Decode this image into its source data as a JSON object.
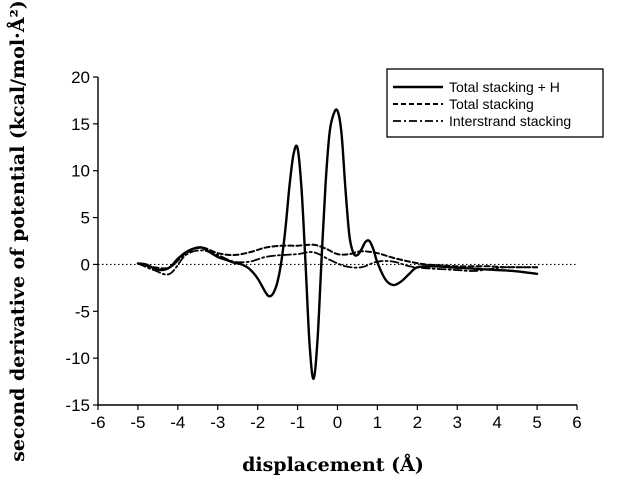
{
  "chart_data": {
    "type": "line",
    "title": "",
    "xlabel": "displacement (Å)",
    "ylabel": "second derivative of potential (kcal/mol·Å²)",
    "xlim": [
      -6,
      6
    ],
    "ylim": [
      -15,
      20
    ],
    "xticks": [
      -6,
      -5,
      -4,
      -3,
      -2,
      -1,
      0,
      1,
      2,
      3,
      4,
      5,
      6
    ],
    "yticks": [
      -15,
      -10,
      -5,
      0,
      5,
      10,
      15,
      20
    ],
    "grid": false,
    "legend_position": "top-right",
    "zero_line": true,
    "series": [
      {
        "name": "Total stacking + H",
        "style": "solid",
        "x": [
          -5.0,
          -4.8,
          -4.6,
          -4.4,
          -4.2,
          -4.0,
          -3.8,
          -3.6,
          -3.4,
          -3.2,
          -3.0,
          -2.8,
          -2.6,
          -2.4,
          -2.2,
          -2.0,
          -1.8,
          -1.7,
          -1.6,
          -1.5,
          -1.4,
          -1.3,
          -1.2,
          -1.1,
          -1.0,
          -0.9,
          -0.8,
          -0.7,
          -0.6,
          -0.5,
          -0.4,
          -0.3,
          -0.2,
          -0.1,
          0.0,
          0.1,
          0.2,
          0.3,
          0.4,
          0.5,
          0.6,
          0.7,
          0.8,
          0.9,
          1.0,
          1.2,
          1.4,
          1.6,
          1.8,
          2.0,
          2.4,
          2.8,
          3.2,
          3.6,
          4.0,
          4.4,
          4.8,
          5.0
        ],
        "y": [
          0.1,
          0.0,
          -0.4,
          -0.6,
          -0.3,
          0.6,
          1.3,
          1.7,
          1.8,
          1.3,
          0.8,
          0.5,
          0.2,
          0.0,
          -0.5,
          -1.5,
          -3.0,
          -3.4,
          -3.0,
          -1.8,
          0.5,
          4.0,
          8.5,
          11.8,
          12.4,
          8.0,
          0.0,
          -8.5,
          -12.2,
          -8.0,
          0.5,
          8.5,
          14.0,
          16.0,
          16.4,
          14.0,
          8.0,
          3.0,
          1.2,
          1.0,
          1.6,
          2.4,
          2.5,
          1.6,
          0.2,
          -1.6,
          -2.2,
          -1.8,
          -1.0,
          -0.3,
          -0.2,
          -0.3,
          -0.4,
          -0.5,
          -0.6,
          -0.7,
          -0.9,
          -1.0
        ]
      },
      {
        "name": "Total stacking",
        "style": "dashed",
        "x": [
          -5.0,
          -4.6,
          -4.2,
          -3.8,
          -3.4,
          -3.0,
          -2.6,
          -2.2,
          -1.8,
          -1.4,
          -1.0,
          -0.6,
          -0.3,
          0.0,
          0.3,
          0.6,
          1.0,
          1.4,
          1.8,
          2.2,
          2.6,
          3.0,
          3.4,
          3.8,
          4.2,
          4.6,
          5.0
        ],
        "y": [
          0.1,
          -0.3,
          -0.3,
          1.2,
          1.8,
          1.2,
          1.0,
          1.3,
          1.8,
          2.0,
          2.0,
          2.1,
          1.7,
          1.1,
          1.1,
          1.4,
          1.2,
          0.7,
          0.3,
          0.0,
          -0.1,
          -0.2,
          -0.2,
          -0.2,
          -0.3,
          -0.3,
          -0.3
        ]
      },
      {
        "name": "Interstrand stacking",
        "style": "dashdot",
        "x": [
          -5.0,
          -4.6,
          -4.2,
          -3.8,
          -3.4,
          -3.0,
          -2.6,
          -2.2,
          -1.8,
          -1.4,
          -1.0,
          -0.6,
          -0.2,
          0.2,
          0.6,
          1.0,
          1.4,
          1.8,
          2.2,
          2.6,
          3.0,
          3.4,
          3.8,
          4.2,
          4.6,
          5.0
        ],
        "y": [
          0.1,
          -0.6,
          -1.0,
          1.0,
          1.5,
          1.0,
          0.3,
          0.3,
          0.8,
          1.0,
          1.1,
          1.3,
          0.5,
          -0.2,
          -0.3,
          0.3,
          0.3,
          -0.2,
          -0.4,
          -0.5,
          -0.6,
          -0.7,
          -0.5,
          -0.3,
          -0.3,
          -0.3
        ]
      }
    ]
  }
}
